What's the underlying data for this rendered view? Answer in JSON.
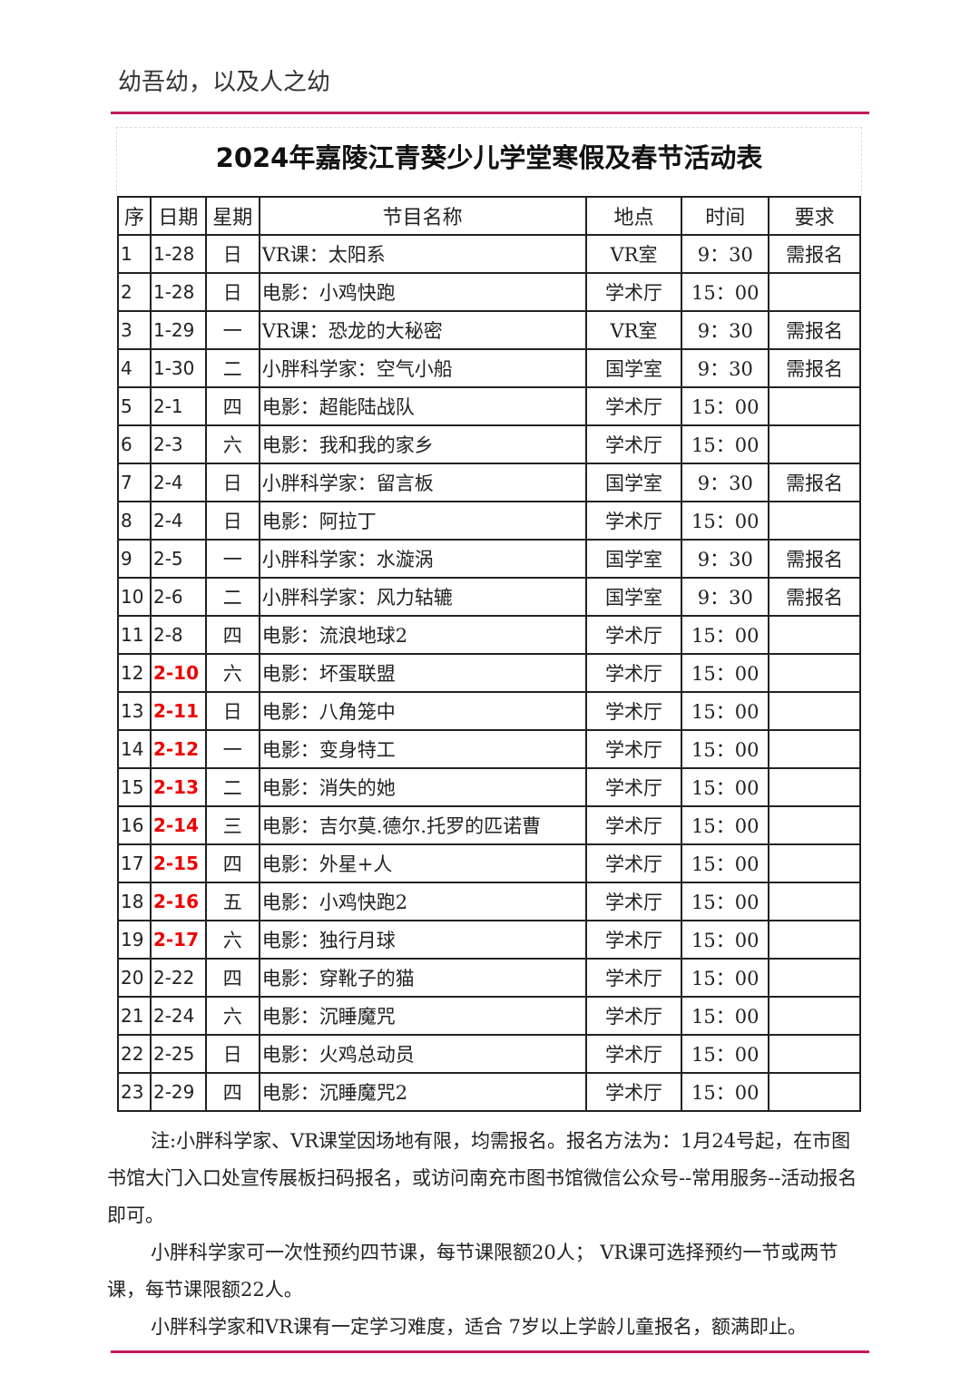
{
  "motto": "幼吾幼，以及人之幼",
  "title": "2024年嘉陵江青葵少儿学堂寒假及春节活动表",
  "columns": [
    "序",
    "日期",
    "星期",
    "节目名称",
    "地点",
    "时间",
    "要求"
  ],
  "accent_color": "#c2185b",
  "highlight_color": "#e00000",
  "rows": [
    [
      "1",
      "1-28",
      "日",
      "VR课：太阳系",
      "VR室",
      "9：30",
      "需报名",
      false
    ],
    [
      "2",
      "1-28",
      "日",
      "电影：小鸡快跑",
      "学术厅",
      "15：00",
      "",
      false
    ],
    [
      "3",
      "1-29",
      "一",
      "VR课：恐龙的大秘密",
      "VR室",
      "9：30",
      "需报名",
      false
    ],
    [
      "4",
      "1-30",
      "二",
      "小胖科学家：空气小船",
      "国学室",
      "9：30",
      "需报名",
      false
    ],
    [
      "5",
      "2-1",
      "四",
      "电影：超能陆战队",
      "学术厅",
      "15：00",
      "",
      false
    ],
    [
      "6",
      "2-3",
      "六",
      "电影：我和我的家乡",
      "学术厅",
      "15：00",
      "",
      false
    ],
    [
      "7",
      "2-4",
      "日",
      "小胖科学家：留言板",
      "国学室",
      "9：30",
      "需报名",
      false
    ],
    [
      "8",
      "2-4",
      "日",
      "电影：阿拉丁",
      "学术厅",
      "15：00",
      "",
      false
    ],
    [
      "9",
      "2-5",
      "一",
      "小胖科学家：水漩涡",
      "国学室",
      "9：30",
      "需报名",
      false
    ],
    [
      "10",
      "2-6",
      "二",
      "小胖科学家：风力轱辘",
      "国学室",
      "9：30",
      "需报名",
      false
    ],
    [
      "11",
      "2-8",
      "四",
      "电影：流浪地球2",
      "学术厅",
      "15：00",
      "",
      false
    ],
    [
      "12",
      "2-10",
      "六",
      "电影：坏蛋联盟",
      "学术厅",
      "15：00",
      "",
      true
    ],
    [
      "13",
      "2-11",
      "日",
      "电影：八角笼中",
      "学术厅",
      "15：00",
      "",
      true
    ],
    [
      "14",
      "2-12",
      "一",
      "电影：变身特工",
      "学术厅",
      "15：00",
      "",
      true
    ],
    [
      "15",
      "2-13",
      "二",
      "电影：消失的她",
      "学术厅",
      "15：00",
      "",
      true
    ],
    [
      "16",
      "2-14",
      "三",
      "电影：吉尔莫.德尔.托罗的匹诺曹",
      "学术厅",
      "15：00",
      "",
      true
    ],
    [
      "17",
      "2-15",
      "四",
      "电影：外星+人",
      "学术厅",
      "15：00",
      "",
      true
    ],
    [
      "18",
      "2-16",
      "五",
      "电影：小鸡快跑2",
      "学术厅",
      "15：00",
      "",
      true
    ],
    [
      "19",
      "2-17",
      "六",
      "电影：独行月球",
      "学术厅",
      "15：00",
      "",
      true
    ],
    [
      "20",
      "2-22",
      "四",
      "电影：穿靴子的猫",
      "学术厅",
      "15：00",
      "",
      false
    ],
    [
      "21",
      "2-24",
      "六",
      "电影：沉睡魔咒",
      "学术厅",
      "15：00",
      "",
      false
    ],
    [
      "22",
      "2-25",
      "日",
      "电影：火鸡总动员",
      "学术厅",
      "15：00",
      "",
      false
    ],
    [
      "23",
      "2-29",
      "四",
      "电影：沉睡魔咒2",
      "学术厅",
      "15：00",
      "",
      false
    ]
  ],
  "notes": [
    "注:小胖科学家、VR课堂因场地有限，均需报名。报名方法为：1月24号起，在市图书馆大门入口处宣传展板扫码报名，或访问南充市图书馆微信公众号--常用服务--活动报名即可。",
    "小胖科学家可一次性预约四节课，每节课限额20人； VR课可选择预约一节或两节课，每节课限额22人。",
    "小胖科学家和VR课有一定学习难度，适合 7岁以上学龄儿童报名，额满即止。"
  ]
}
